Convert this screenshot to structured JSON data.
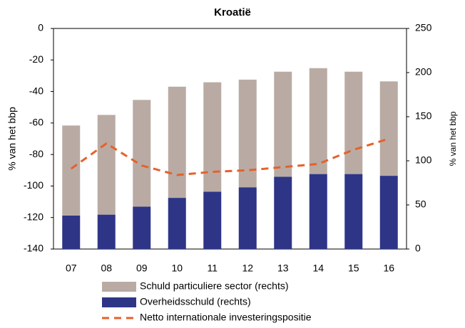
{
  "chart_data": {
    "type": "bar",
    "title": "Kroatië",
    "y_label": "% van  het bbp",
    "y2_label": "% van het bbp",
    "categories": [
      "07",
      "08",
      "09",
      "10",
      "11",
      "12",
      "13",
      "14",
      "15",
      "16"
    ],
    "series": [
      {
        "name": "Overheidsschuld (rechts)",
        "type": "bar",
        "axis": "y2",
        "color": "#2e3587",
        "values": [
          38,
          39,
          48,
          58,
          65,
          70,
          82,
          85,
          85,
          83
        ]
      },
      {
        "name": "Schuld particuliere sector (rechts)",
        "type": "bar",
        "axis": "y2",
        "color": "#b9aba3",
        "values": [
          102,
          113,
          121,
          126,
          124,
          122,
          119,
          120,
          116,
          107
        ]
      },
      {
        "name": "Netto internationale investeringspositie",
        "type": "line",
        "axis": "y",
        "color": "#e5612b",
        "values": [
          -89,
          -73,
          -87,
          -93,
          -91,
          -90,
          -88,
          -86,
          -77,
          -70
        ]
      }
    ],
    "ylim": [
      -140,
      0
    ],
    "yticks": [
      0,
      -20,
      -40,
      -60,
      -80,
      -100,
      -120,
      -140
    ],
    "y2lim": [
      0,
      250
    ],
    "y2ticks": [
      0,
      50,
      100,
      150,
      200,
      250
    ],
    "legend_order": [
      1,
      0,
      2
    ]
  }
}
